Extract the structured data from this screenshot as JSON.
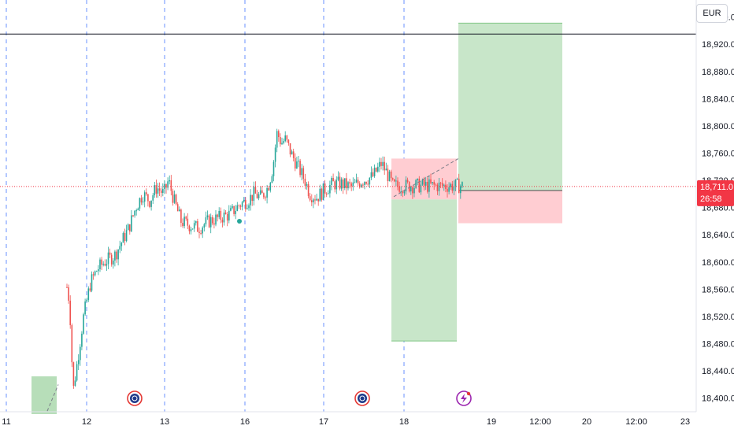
{
  "currency_button": "EUR",
  "colors": {
    "up": "#26a69a",
    "down": "#ef5350",
    "profit_zone": "#c8e6c9",
    "loss_zone": "#ffcdd2",
    "grid_dashed": "#2962ff",
    "current_price": "#f23645"
  },
  "current_price": {
    "value": 18711.0,
    "label": "18,711.0",
    "countdown": "26:58"
  },
  "chart_data": {
    "type": "candlestick",
    "title": "",
    "xlabel": "",
    "ylabel": "",
    "y_range": [
      18380,
      18985
    ],
    "y_ticks": [
      {
        "value": 18960,
        "label": "18,960.0"
      },
      {
        "value": 18920,
        "label": "18,920.0"
      },
      {
        "value": 18880,
        "label": "18,880.0"
      },
      {
        "value": 18840,
        "label": "18,840.0"
      },
      {
        "value": 18800,
        "label": "18,800.0"
      },
      {
        "value": 18760,
        "label": "18,760.0"
      },
      {
        "value": 18720,
        "label": "18,720.0"
      },
      {
        "value": 18680,
        "label": "18,680.0"
      },
      {
        "value": 18640,
        "label": "18,640.0"
      },
      {
        "value": 18600,
        "label": "18,600.0"
      },
      {
        "value": 18560,
        "label": "18,560.0"
      },
      {
        "value": 18520,
        "label": "18,520.0"
      },
      {
        "value": 18480,
        "label": "18,480.0"
      },
      {
        "value": 18440,
        "label": "18,440.0"
      },
      {
        "value": 18400,
        "label": "18,400.0"
      }
    ],
    "x_ticks": [
      "11",
      "12",
      "13",
      "16",
      "17",
      "18",
      "19",
      "12:00",
      "20",
      "12:00",
      "23"
    ],
    "horizontal_line": 18935,
    "price_path": [
      [
        0.0,
        18380
      ],
      [
        0.01,
        18420
      ],
      [
        0.025,
        18500
      ],
      [
        0.045,
        18540
      ],
      [
        0.055,
        18510
      ],
      [
        0.065,
        18560
      ],
      [
        0.075,
        18580
      ],
      [
        0.085,
        18590
      ],
      [
        0.095,
        18570
      ],
      [
        0.1,
        18540
      ],
      [
        0.105,
        18410
      ],
      [
        0.112,
        18460
      ],
      [
        0.12,
        18520
      ],
      [
        0.13,
        18570
      ],
      [
        0.14,
        18590
      ],
      [
        0.15,
        18600
      ],
      [
        0.165,
        18610
      ],
      [
        0.175,
        18630
      ],
      [
        0.185,
        18650
      ],
      [
        0.195,
        18680
      ],
      [
        0.205,
        18700
      ],
      [
        0.215,
        18690
      ],
      [
        0.225,
        18710
      ],
      [
        0.235,
        18700
      ],
      [
        0.242,
        18720
      ],
      [
        0.25,
        18690
      ],
      [
        0.26,
        18660
      ],
      [
        0.27,
        18655
      ],
      [
        0.285,
        18650
      ],
      [
        0.3,
        18660
      ],
      [
        0.315,
        18665
      ],
      [
        0.33,
        18670
      ],
      [
        0.345,
        18685
      ],
      [
        0.355,
        18690
      ],
      [
        0.365,
        18700
      ],
      [
        0.375,
        18695
      ],
      [
        0.385,
        18710
      ],
      [
        0.392,
        18740
      ],
      [
        0.398,
        18790
      ],
      [
        0.404,
        18775
      ],
      [
        0.41,
        18780
      ],
      [
        0.418,
        18760
      ],
      [
        0.428,
        18740
      ],
      [
        0.438,
        18720
      ],
      [
        0.445,
        18700
      ],
      [
        0.455,
        18695
      ],
      [
        0.465,
        18705
      ],
      [
        0.478,
        18715
      ],
      [
        0.49,
        18715
      ],
      [
        0.505,
        18710
      ],
      [
        0.52,
        18720
      ],
      [
        0.535,
        18725
      ],
      [
        0.548,
        18745
      ],
      [
        0.556,
        18730
      ],
      [
        0.564,
        18712
      ]
    ],
    "position_long": {
      "entry": 18705,
      "target": 18951,
      "stop": 18657
    },
    "position_short": {
      "entry": 18692,
      "stop": 18752,
      "target": 18484
    },
    "previous_long": {
      "entry": 18402,
      "target": 18432
    }
  }
}
